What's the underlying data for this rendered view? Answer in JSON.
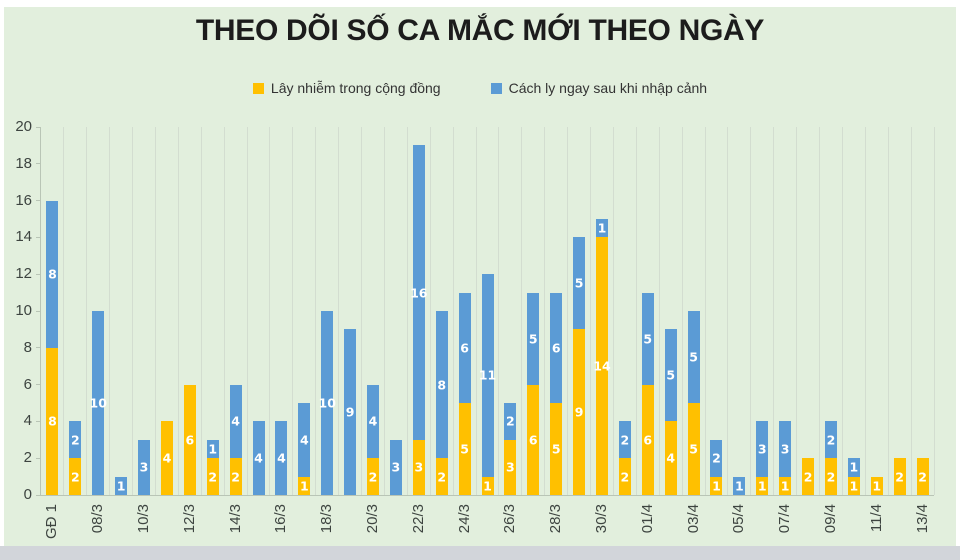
{
  "title": "THEO DÕI SỐ CA MẮC MỚI THEO NGÀY",
  "legend": [
    {
      "label": "Lây nhiễm trong cộng đồng",
      "color": "#FFC000"
    },
    {
      "label": "Cách ly ngay sau khi nhập cảnh",
      "color": "#5B9BD5"
    }
  ],
  "colors": {
    "background": "#e2efdd",
    "community": "#FFC000",
    "quarantine": "#5B9BD5",
    "value_label": "#ffffff",
    "axis_text": "#3d4440",
    "gridline": "#d3ddd0",
    "bottom_strip": "#d2d5da"
  },
  "chart_data": {
    "type": "bar",
    "stacked": true,
    "title": "THEO DÕI SỐ CA MẮC MỚI THEO NGÀY",
    "categories": [
      "GĐ 1",
      "",
      "08/3",
      "",
      "10/3",
      "",
      "12/3",
      "",
      "14/3",
      "",
      "16/3",
      "",
      "18/3",
      "",
      "20/3",
      "",
      "22/3",
      "",
      "24/3",
      "",
      "26/3",
      "",
      "28/3",
      "",
      "30/3",
      "",
      "01/4",
      "",
      "03/4",
      "",
      "05/4",
      "",
      "07/4",
      "",
      "09/4",
      "",
      "11/4",
      "",
      "13/4"
    ],
    "series": [
      {
        "name": "Lây nhiễm trong cộng đồng",
        "color": "#FFC000",
        "values": [
          8,
          2,
          0,
          0,
          0,
          4,
          6,
          2,
          2,
          0,
          0,
          1,
          0,
          0,
          2,
          0,
          3,
          2,
          5,
          1,
          3,
          6,
          5,
          9,
          14,
          2,
          6,
          4,
          5,
          1,
          0,
          1,
          1,
          2,
          2,
          1,
          1,
          2,
          2
        ]
      },
      {
        "name": "Cách ly ngay sau khi nhập cảnh",
        "color": "#5B9BD5",
        "values": [
          8,
          2,
          10,
          1,
          3,
          0,
          0,
          1,
          4,
          4,
          4,
          4,
          10,
          9,
          4,
          3,
          16,
          8,
          6,
          11,
          2,
          5,
          6,
          5,
          1,
          2,
          5,
          5,
          5,
          2,
          1,
          3,
          3,
          0,
          2,
          1,
          0,
          0,
          0
        ]
      }
    ],
    "ylim": [
      0,
      20
    ],
    "ytick_step": 2,
    "yticks": [
      0,
      2,
      4,
      6,
      8,
      10,
      12,
      14,
      16,
      18,
      20
    ],
    "grid": "vertical",
    "legend_position": "top",
    "value_labels": "white, inside segments, hidden when value is 0"
  }
}
